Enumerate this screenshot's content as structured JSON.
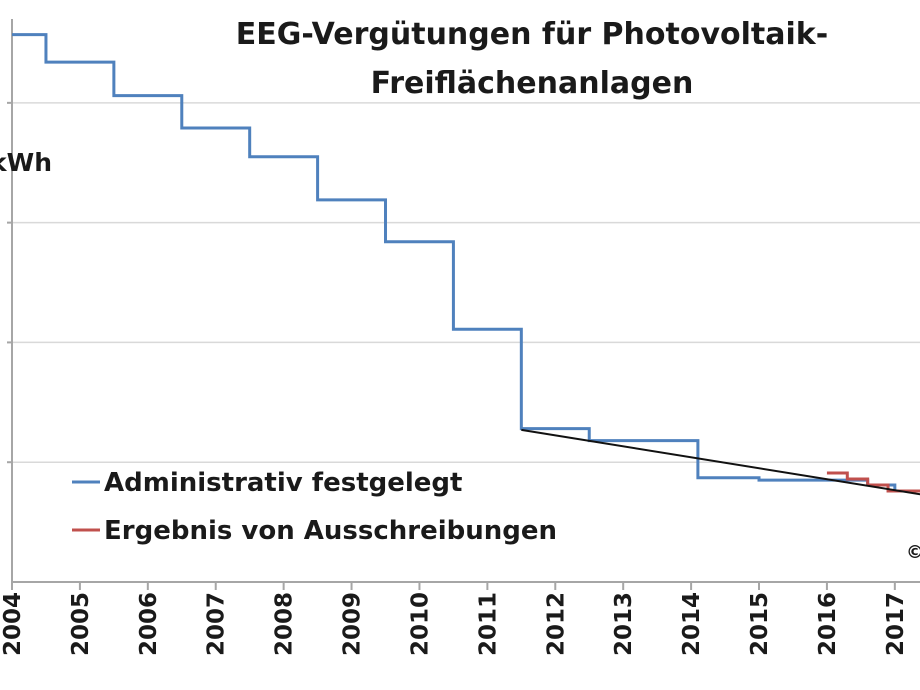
{
  "chart_data": {
    "type": "line",
    "title_line1": "EEG-Vergütungen für Photovoltaik-",
    "title_line2": "Freiflächenanlagen",
    "ylabel": "kWh",
    "copyright": "©",
    "xlim": [
      2004,
      2017.4
    ],
    "ylim": [
      0,
      47
    ],
    "grid": "horizontal",
    "legend_position": "bottom-left",
    "x_ticks": [
      "2004",
      "2005",
      "2006",
      "2007",
      "2008",
      "2009",
      "2010",
      "2011",
      "2012",
      "2013",
      "2014",
      "2015",
      "2016",
      "2017"
    ],
    "series": [
      {
        "name": "Administrativ festgelegt",
        "color": "#4f81bd",
        "step": true,
        "x": [
          2004.0,
          2004.5,
          2005.5,
          2006.5,
          2007.5,
          2008.5,
          2009.5,
          2010.5,
          2011.5,
          2012.5,
          2014.1,
          2015.0,
          2016.0,
          2016.6,
          2017.0,
          2017.4
        ],
        "y": [
          45.7,
          43.4,
          40.6,
          37.9,
          35.5,
          31.9,
          28.4,
          21.1,
          12.8,
          11.8,
          8.7,
          8.5,
          8.5,
          8.1,
          7.6,
          7.5
        ]
      },
      {
        "name": "Ergebnis von Ausschreibungen",
        "color": "#c0504d",
        "step": true,
        "x": [
          2016.0,
          2016.3,
          2016.6,
          2016.9,
          2017.4
        ],
        "y": [
          9.1,
          8.6,
          8.1,
          7.6,
          7.5
        ]
      },
      {
        "name": "",
        "color": "#111111",
        "step": false,
        "x": [
          2011.5,
          2017.4
        ],
        "y": [
          12.7,
          7.3
        ]
      }
    ]
  }
}
